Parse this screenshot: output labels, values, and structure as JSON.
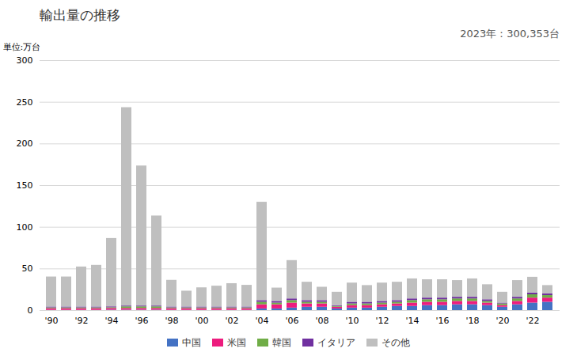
{
  "chart_data": {
    "type": "bar",
    "stacked": true,
    "title": "輸出量の推移",
    "ylabel": "単位:万台",
    "annotation": "2023年：300,353台",
    "categories": [
      "'90",
      null,
      "'92",
      null,
      "'94",
      null,
      "'96",
      null,
      "'98",
      null,
      "'00",
      null,
      "'02",
      null,
      "'04",
      null,
      "'06",
      null,
      "'08",
      null,
      "'10",
      null,
      "'12",
      null,
      "'14",
      null,
      "'16",
      null,
      "'18",
      null,
      "'20",
      null,
      "'22",
      null
    ],
    "series": [
      {
        "name": "中国",
        "color": "#4472c4",
        "values": [
          0.3,
          0.3,
          0.3,
          0.3,
          0.5,
          0.5,
          0.5,
          0.5,
          0.3,
          0.3,
          0.3,
          0.3,
          0.3,
          0.3,
          2,
          2,
          3,
          4,
          4,
          2,
          3,
          3,
          4,
          5,
          5,
          6,
          6,
          7,
          7,
          6,
          4,
          7,
          9,
          10
        ]
      },
      {
        "name": "米国",
        "color": "#ed1c7e",
        "values": [
          2,
          2,
          2,
          2,
          2,
          2,
          2,
          2,
          2,
          2,
          2,
          2,
          2,
          2,
          5,
          5,
          6,
          4,
          4,
          2,
          3,
          3,
          3,
          3,
          4,
          4,
          4,
          4,
          4,
          3,
          2,
          4,
          6,
          5
        ]
      },
      {
        "name": "韓国",
        "color": "#70ad47",
        "values": [
          1,
          1,
          1,
          1,
          1,
          2,
          2,
          2,
          1,
          1,
          1,
          1,
          1,
          1,
          3,
          2,
          3,
          2,
          2,
          1,
          2,
          2,
          2,
          2,
          3,
          3,
          3,
          3,
          3,
          2,
          2,
          3,
          4,
          3
        ]
      },
      {
        "name": "イタリア",
        "color": "#7030a0",
        "values": [
          1,
          1,
          1,
          1,
          1,
          1,
          1,
          1,
          1,
          1,
          1,
          1,
          1,
          1,
          2,
          2,
          2,
          2,
          2,
          1,
          2,
          2,
          2,
          2,
          2,
          2,
          2,
          2,
          2,
          2,
          1,
          2,
          2,
          2
        ]
      },
      {
        "name": "その他",
        "color": "#bfbfbf",
        "values": [
          36,
          36,
          48,
          50,
          82,
          238,
          168,
          108,
          32,
          19,
          23,
          25,
          28,
          26,
          118,
          16,
          46,
          22,
          16,
          16,
          23,
          20,
          22,
          22,
          24,
          22,
          22,
          20,
          22,
          18,
          13,
          20,
          19,
          10
        ]
      }
    ],
    "ylim": [
      0,
      300
    ],
    "yticks": [
      0,
      50,
      100,
      150,
      200,
      250,
      300
    ],
    "grid": true,
    "legend": "bottom"
  }
}
